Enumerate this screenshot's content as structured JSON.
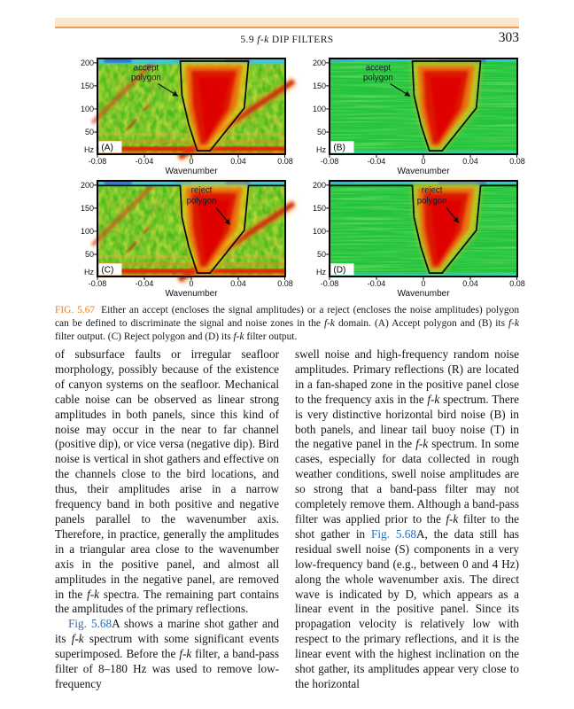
{
  "page": {
    "number": "303",
    "running_header_runs": [
      {
        "t": "5.9 "
      },
      {
        "t": "f-k",
        "cls": "ital"
      },
      {
        "t": " DIP FILTERS"
      }
    ]
  },
  "figure": {
    "caption_runs": [
      {
        "t": "FIG. 5.67",
        "cls": "fig-label"
      },
      {
        "t": "Either an accept (encloses the signal amplitudes) or a reject (encloses the noise amplitudes) polygon can be defined to discriminate the signal and noise zones in the "
      },
      {
        "t": "f-k",
        "cls": "ital"
      },
      {
        "t": " domain. (A) Accept polygon and (B) its "
      },
      {
        "t": "f-k",
        "cls": "ital"
      },
      {
        "t": " filter output. (C) Reject polygon and (D) its "
      },
      {
        "t": "f-k",
        "cls": "ital"
      },
      {
        "t": " filter output."
      }
    ],
    "panels": [
      {
        "letter": "(A)",
        "annotation_line1": "accept",
        "annotation_line2": "polygon",
        "y_ticks": [
          "200",
          "150",
          "100",
          "50"
        ],
        "y_unit": "Hz",
        "x_ticks": [
          "-0.08",
          "-0.04",
          "0",
          "0.04",
          "0.08"
        ],
        "x_label": "Wavenumber"
      },
      {
        "letter": "(B)",
        "annotation_line1": "accept",
        "annotation_line2": "polygon",
        "y_ticks": [
          "200",
          "150",
          "100",
          "50"
        ],
        "y_unit": "Hz",
        "x_ticks": [
          "-0.08",
          "-0.04",
          "0",
          "0.04",
          "0.08"
        ],
        "x_label": "Wavenumber"
      },
      {
        "letter": "(C)",
        "annotation_line1": "reject",
        "annotation_line2": "polygon",
        "y_ticks": [
          "200",
          "150",
          "100",
          "50"
        ],
        "y_unit": "Hz",
        "x_ticks": [
          "-0.08",
          "-0.04",
          "0",
          "0.04",
          "0.08"
        ],
        "x_label": "Wavenumber"
      },
      {
        "letter": "(D)",
        "annotation_line1": "reject",
        "annotation_line2": "polygon",
        "y_ticks": [
          "200",
          "150",
          "100",
          "50"
        ],
        "y_unit": "Hz",
        "x_ticks": [
          "-0.08",
          "-0.04",
          "0",
          "0.04",
          "0.08"
        ],
        "x_label": "Wavenumber"
      }
    ],
    "chart_data": [
      {
        "type": "heatmap",
        "panel": "A",
        "title": "f-k spectrum of raw shot gather with accept polygon",
        "xlabel": "Wavenumber",
        "ylabel": "Hz",
        "xlim": [
          -0.08,
          0.08
        ],
        "ylim": [
          0,
          210
        ],
        "x_ticks": [
          -0.08,
          -0.04,
          0,
          0.04,
          0.08
        ],
        "y_ticks": [
          50,
          100,
          150,
          200
        ],
        "annotation": "accept polygon",
        "polygon_vertices_frac_xy": [
          [
            0.44,
            0.03
          ],
          [
            0.8,
            0.03
          ],
          [
            0.78,
            0.52
          ],
          [
            0.6,
            0.96
          ],
          [
            0.53,
            0.96
          ],
          [
            0.49,
            0.69
          ],
          [
            0.45,
            0.38
          ]
        ],
        "features": [
          "high-amplitude red signal cone centered near wavenumber 0 enclosed by polygon",
          "strong red linear dipping noise band toward upper right",
          "fainter dipping band in upper left",
          "strong red low-frequency band near 0 Hz across all wavenumbers",
          "cyan band above 200 Hz",
          "speckled yellow-green background"
        ]
      },
      {
        "type": "heatmap",
        "panel": "B",
        "title": "f-k filter output of accept polygon",
        "xlabel": "Wavenumber",
        "ylabel": "Hz",
        "xlim": [
          -0.08,
          0.08
        ],
        "ylim": [
          0,
          210
        ],
        "x_ticks": [
          -0.08,
          -0.04,
          0,
          0.04,
          0.08
        ],
        "y_ticks": [
          50,
          100,
          150,
          200
        ],
        "annotation": "accept polygon",
        "polygon_vertices_frac_xy": [
          [
            0.44,
            0.03
          ],
          [
            0.8,
            0.03
          ],
          [
            0.78,
            0.52
          ],
          [
            0.6,
            0.96
          ],
          [
            0.53,
            0.96
          ],
          [
            0.49,
            0.69
          ],
          [
            0.45,
            0.38
          ]
        ],
        "features": [
          "red signal cone preserved inside polygon",
          "smooth green background with horizontal striping outside polygon",
          "thin cyan bands at top and bottom edges"
        ]
      },
      {
        "type": "heatmap",
        "panel": "C",
        "title": "f-k spectrum of raw shot gather with reject polygon",
        "xlabel": "Wavenumber",
        "ylabel": "Hz",
        "xlim": [
          -0.08,
          0.08
        ],
        "ylim": [
          0,
          210
        ],
        "x_ticks": [
          -0.08,
          -0.04,
          0,
          0.04,
          0.08
        ],
        "y_ticks": [
          50,
          100,
          150,
          200
        ],
        "annotation": "reject polygon",
        "polygon_outline": "runs along top edge from both sides and down around the central signal cone (open funnel)",
        "features": [
          "same raw spectrum as panel A",
          "reject polygon outline excludes central signal cone",
          "strong dipping red noise band to upper right",
          "red low-frequency band near 0 Hz"
        ]
      },
      {
        "type": "heatmap",
        "panel": "D",
        "title": "f-k filter output of reject polygon",
        "xlabel": "Wavenumber",
        "ylabel": "Hz",
        "xlim": [
          -0.08,
          0.08
        ],
        "ylim": [
          0,
          210
        ],
        "x_ticks": [
          -0.08,
          -0.04,
          0,
          0.04,
          0.08
        ],
        "y_ticks": [
          50,
          100,
          150,
          200
        ],
        "annotation": "reject polygon",
        "polygon_outline": "runs along top edge from both sides and down around the central signal cone (open funnel)",
        "features": [
          "red-orange signal cone remains near wavenumber 0",
          "noise outside cone removed leaving smooth green background",
          "thin cyan band at bottom edge"
        ]
      }
    ]
  },
  "body": {
    "left_col": {
      "p1_runs": [
        {
          "t": "of subsurface faults or irregular seafloor morphology, possibly because of the existence of canyon systems on the seafloor. Mechanical cable noise can be observed as linear strong amplitudes in both panels, since this kind of noise may occur in the near to far channel (positive dip), or vice versa (negative dip). Bird noise is vertical in shot gathers and effective on the channels close to the bird locations, and thus, their amplitudes arise in a narrow frequency band in both positive and negative panels parallel to the wavenumber axis. Therefore, in practice, generally the amplitudes in a triangular area close to the wavenumber axis in the positive panel, and almost all amplitudes in the negative panel, are removed in the "
        },
        {
          "t": "f-k",
          "cls": "ital"
        },
        {
          "t": " spectra. The remaining part contains the amplitudes of the primary reflections."
        }
      ],
      "p2_runs": [
        {
          "t": "Fig. 5.68",
          "cls": "link"
        },
        {
          "t": "A shows a marine shot gather and its "
        },
        {
          "t": "f-k",
          "cls": "ital"
        },
        {
          "t": " spectrum with some significant events superimposed. Before the "
        },
        {
          "t": "f-k",
          "cls": "ital"
        },
        {
          "t": " filter, a band-pass filter of 8–180 Hz was used to remove low-frequency"
        }
      ]
    },
    "right_col": {
      "p1_runs": [
        {
          "t": "swell noise and high-frequency random noise amplitudes. Primary reflections (R) are located in a fan-shaped zone in the positive panel close to the frequency axis in the "
        },
        {
          "t": "f-k",
          "cls": "ital"
        },
        {
          "t": " spectrum. There is very distinctive horizontal bird noise (B) in both panels, and linear tail buoy noise (T) in the negative panel in the "
        },
        {
          "t": "f-k",
          "cls": "ital"
        },
        {
          "t": " spectrum. In some cases, especially for data collected in rough weather conditions, swell noise amplitudes are so strong that a band-pass filter may not completely remove them. Although a band-pass filter was applied prior to the "
        },
        {
          "t": "f-k",
          "cls": "ital"
        },
        {
          "t": " filter to the shot gather in "
        },
        {
          "t": "Fig. 5.68",
          "cls": "link"
        },
        {
          "t": "A, the data still has residual swell noise (S) components in a very low-frequency band (e.g., between 0 and 4 Hz) along the whole wavenumber axis. The direct wave is indicated by D, which appears as a linear event in the positive panel. Since its propagation velocity is relatively low with respect to the primary reflections, and it is the linear event with the highest inclination on the shot gather, its amplitudes appear very close to the horizontal"
        }
      ]
    }
  },
  "colors": {
    "accent_bar_fill": "#fbe7d0",
    "accent_bar_line": "#f29d49",
    "figure_label_orange": "#e87e21",
    "link_blue": "#2b6cb8",
    "spectrum_green": "#46bb1e",
    "spectrum_filtered_green": "#24c33c",
    "spectrum_red": "#dd1e02",
    "spectrum_cyan": "#38c8e6",
    "spectrum_yellow": "#f3c818"
  }
}
